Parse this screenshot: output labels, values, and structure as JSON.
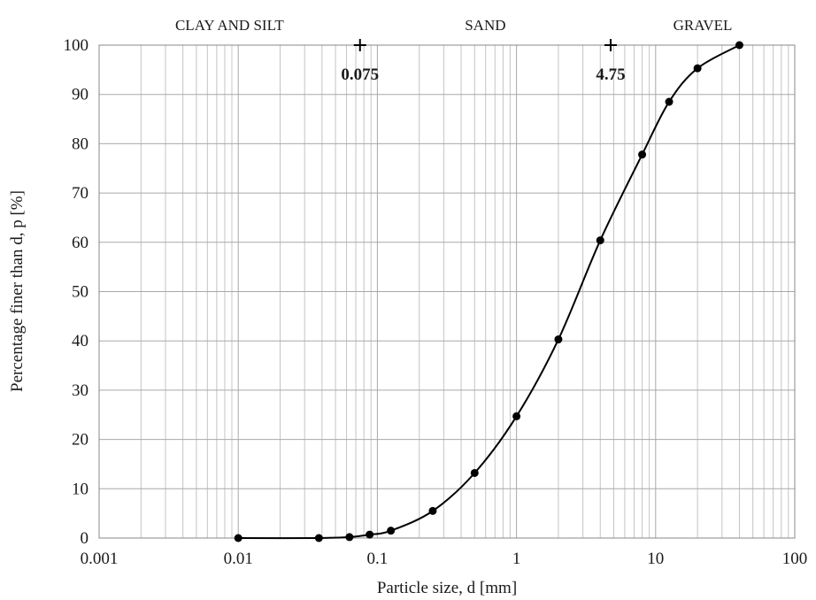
{
  "chart_data": {
    "type": "line",
    "xscale": "log",
    "x_range": [
      0.001,
      100
    ],
    "ylim": [
      0,
      100
    ],
    "grid": true,
    "xlabel": "Particle size, d [mm]",
    "ylabel": "Percentage finer than d, p [%]",
    "x_tick_labels": [
      "0.001",
      "0.01",
      "0.1",
      "1",
      "10",
      "100"
    ],
    "y_tick_labels": [
      "0",
      "10",
      "20",
      "30",
      "40",
      "50",
      "60",
      "70",
      "80",
      "90",
      "100"
    ],
    "series": [
      {
        "x": [
          0.01,
          0.038,
          0.063,
          0.088,
          0.125,
          0.25,
          0.5,
          1,
          2,
          4,
          8,
          12.5,
          20,
          40
        ],
        "y": [
          0,
          0,
          0.2,
          0.7,
          1.5,
          5.5,
          13.2,
          24.7,
          40.3,
          60.4,
          77.8,
          88.5,
          95.3,
          100
        ]
      }
    ],
    "regions": [
      {
        "label": "CLAY AND SILT",
        "x_from": 0.001,
        "x_to": 0.075
      },
      {
        "label": "SAND",
        "x_from": 0.075,
        "x_to": 4.75
      },
      {
        "label": "GRAVEL",
        "x_from": 4.75,
        "x_to": 100
      }
    ],
    "boundaries": [
      {
        "value": 0.075,
        "label": "0.075"
      },
      {
        "value": 4.75,
        "label": "4.75"
      }
    ]
  }
}
